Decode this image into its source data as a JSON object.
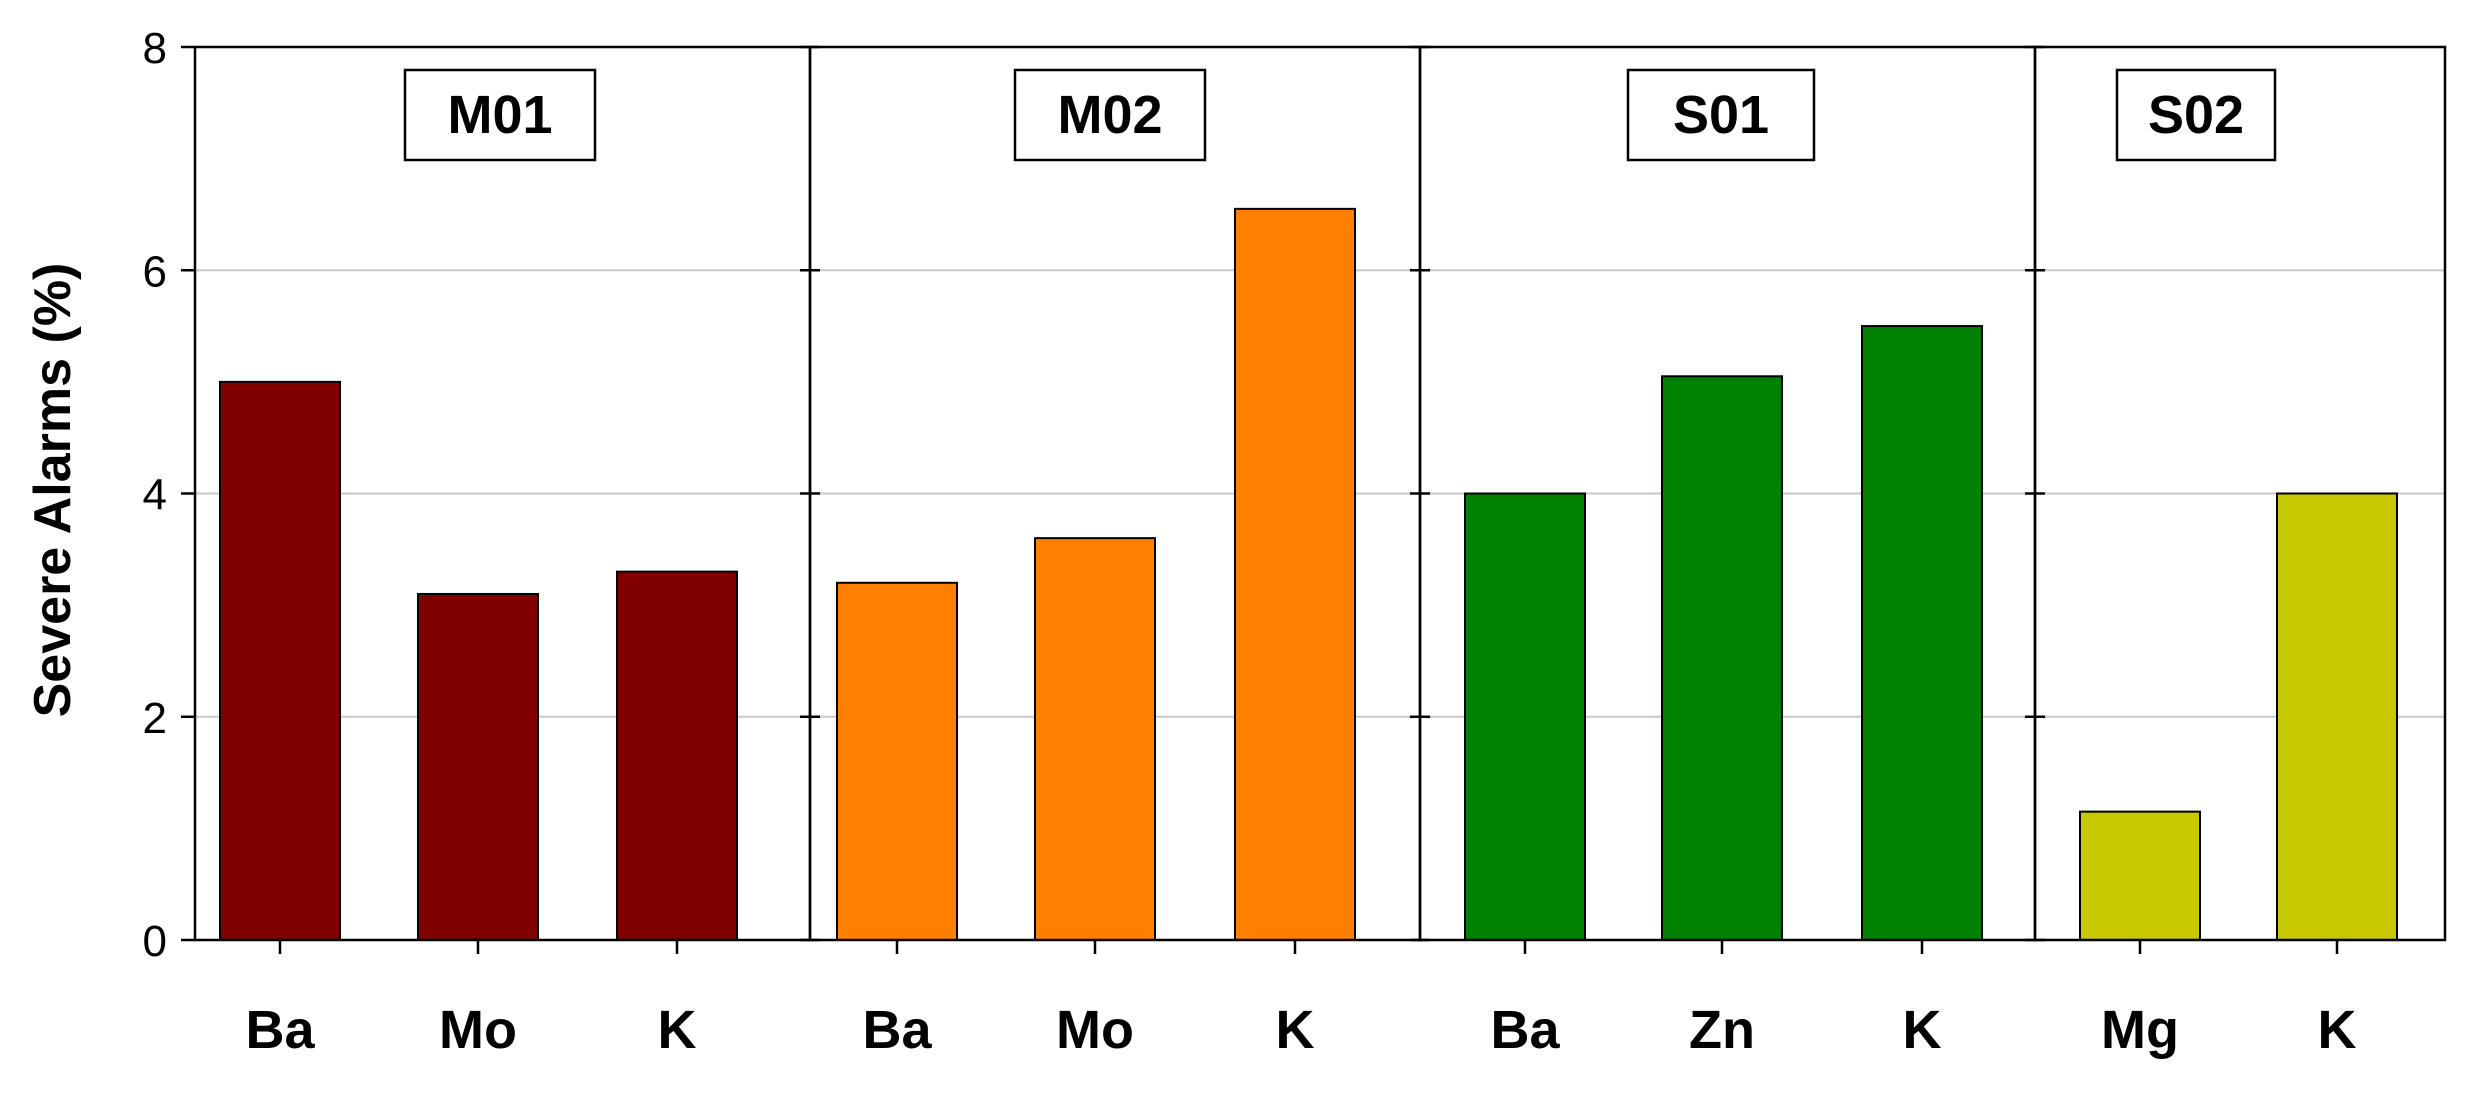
{
  "chart_data": {
    "type": "bar",
    "ylabel": "Severe Alarms (%)",
    "ylim": [
      0,
      8
    ],
    "yticks": [
      "0",
      "2",
      "4",
      "6",
      "8"
    ],
    "grid": true,
    "panels": [
      {
        "title": "M01",
        "color": "#800000",
        "categories": [
          "Ba",
          "Mo",
          "K"
        ],
        "values": [
          5.0,
          3.1,
          3.3
        ]
      },
      {
        "title": "M02",
        "color": "#FF8000",
        "categories": [
          "Ba",
          "Mo",
          "K"
        ],
        "values": [
          3.2,
          3.6,
          6.55
        ]
      },
      {
        "title": "S01",
        "color": "#008000",
        "categories": [
          "Ba",
          "Zn",
          "K"
        ],
        "values": [
          4.0,
          5.05,
          5.5
        ]
      },
      {
        "title": "S02",
        "color": "#C8C800",
        "categories": [
          "Mg",
          "K"
        ],
        "values": [
          1.15,
          4.0
        ]
      }
    ]
  }
}
